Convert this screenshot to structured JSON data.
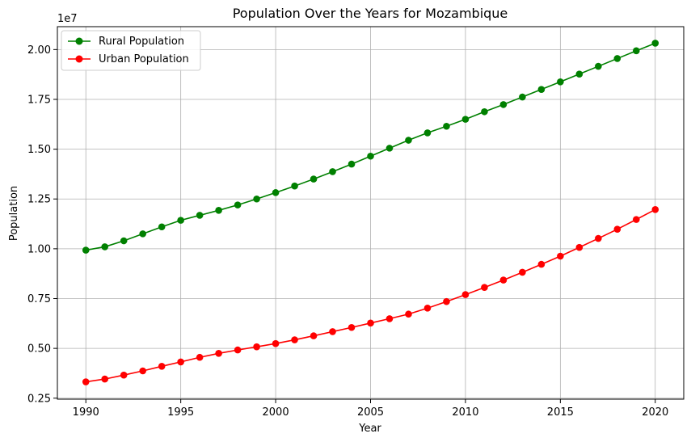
{
  "chart_data": {
    "type": "line",
    "title": "Population Over the Years for Mozambique",
    "xlabel": "Year",
    "ylabel": "Population",
    "offset_label": "1e7",
    "xlim": [
      1988.5,
      2021.5
    ],
    "ylim": [
      2.45,
      21.15
    ],
    "y_scale_note": "values in units of 1e7 as shown by axis offset",
    "x_ticks": [
      1990,
      1995,
      2000,
      2005,
      2010,
      2015,
      2020
    ],
    "x_tick_labels": [
      "1990",
      "1995",
      "2000",
      "2005",
      "2010",
      "2015",
      "2020"
    ],
    "y_ticks": [
      0.25,
      0.5,
      0.75,
      1.0,
      1.25,
      1.5,
      1.75,
      2.0
    ],
    "y_tick_labels": [
      "0.25",
      "0.50",
      "0.75",
      "1.00",
      "1.25",
      "1.50",
      "1.75",
      "2.00"
    ],
    "grid": true,
    "legend_position": "top-left",
    "x": [
      1990,
      1991,
      1992,
      1993,
      1994,
      1995,
      1996,
      1997,
      1998,
      1999,
      2000,
      2001,
      2002,
      2003,
      2004,
      2005,
      2006,
      2007,
      2008,
      2009,
      2010,
      2011,
      2012,
      2013,
      2014,
      2015,
      2016,
      2017,
      2018,
      2019,
      2020
    ],
    "series": [
      {
        "name": "Rural Population",
        "color": "#008000",
        "values": [
          0.993,
          1.01,
          1.04,
          1.075,
          1.11,
          1.143,
          1.168,
          1.193,
          1.22,
          1.25,
          1.282,
          1.315,
          1.35,
          1.387,
          1.425,
          1.465,
          1.505,
          1.545,
          1.582,
          1.615,
          1.65,
          1.688,
          1.724,
          1.762,
          1.8,
          1.838,
          1.877,
          1.916,
          1.955,
          1.994,
          2.032
        ]
      },
      {
        "name": "Urban Population",
        "color": "#ff0000",
        "values": [
          0.332,
          0.346,
          0.366,
          0.387,
          0.41,
          0.432,
          0.455,
          0.475,
          0.492,
          0.508,
          0.524,
          0.543,
          0.563,
          0.584,
          0.605,
          0.627,
          0.649,
          0.672,
          0.702,
          0.735,
          0.77,
          0.806,
          0.843,
          0.882,
          0.922,
          0.963,
          1.007,
          1.052,
          1.098,
          1.147,
          1.197
        ]
      }
    ]
  }
}
